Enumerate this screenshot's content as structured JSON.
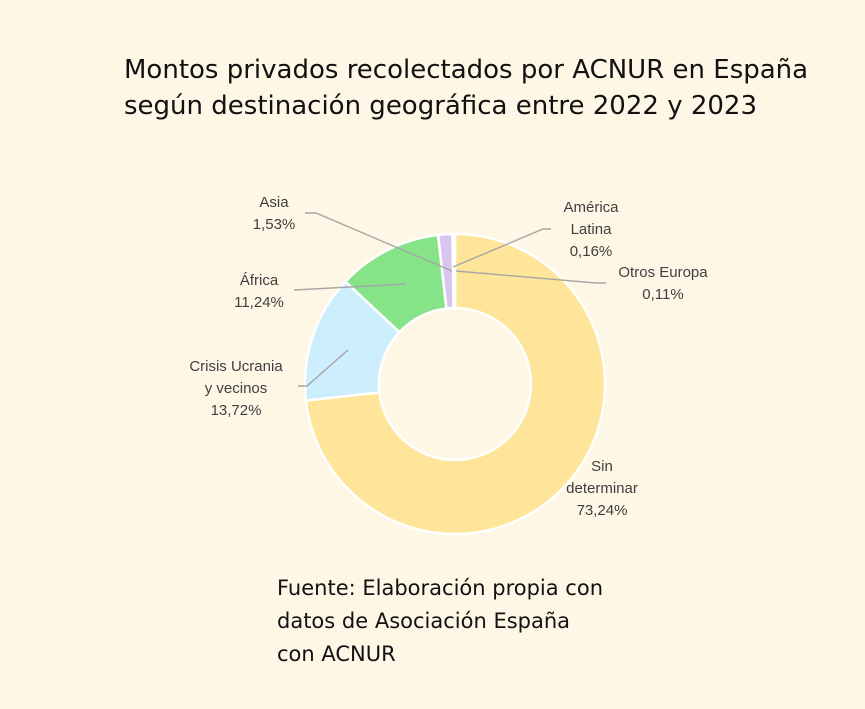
{
  "title_lines": [
    "Montos privados recolectados por ACNUR en España",
    "según destinación geográfica entre 2022 y 2023"
  ],
  "source_lines": [
    "Fuente: Elaboración propia con",
    "datos de Asociación España",
    "con ACNUR"
  ],
  "chart_data": {
    "type": "pie",
    "donut": true,
    "series": [
      {
        "name_lines": [
          "Sin",
          "determinar"
        ],
        "value": 73.24,
        "label": "73,24%",
        "color": "#ffe599"
      },
      {
        "name_lines": [
          "Crisis Ucrania",
          "y vecinos"
        ],
        "value": 13.72,
        "label": "13,72%",
        "color": "#cdeefc"
      },
      {
        "name_lines": [
          "África"
        ],
        "value": 11.24,
        "label": "11,24%",
        "color": "#86e388"
      },
      {
        "name_lines": [
          "Asia"
        ],
        "value": 1.53,
        "label": "1,53%",
        "color": "#d9c6f0"
      },
      {
        "name_lines": [
          "América",
          "Latina"
        ],
        "value": 0.16,
        "label": "0,16%",
        "color": "#f7c7a6"
      },
      {
        "name_lines": [
          "Otros Europa"
        ],
        "value": 0.11,
        "label": "0,11%",
        "color": "#f4b6c9"
      }
    ]
  }
}
